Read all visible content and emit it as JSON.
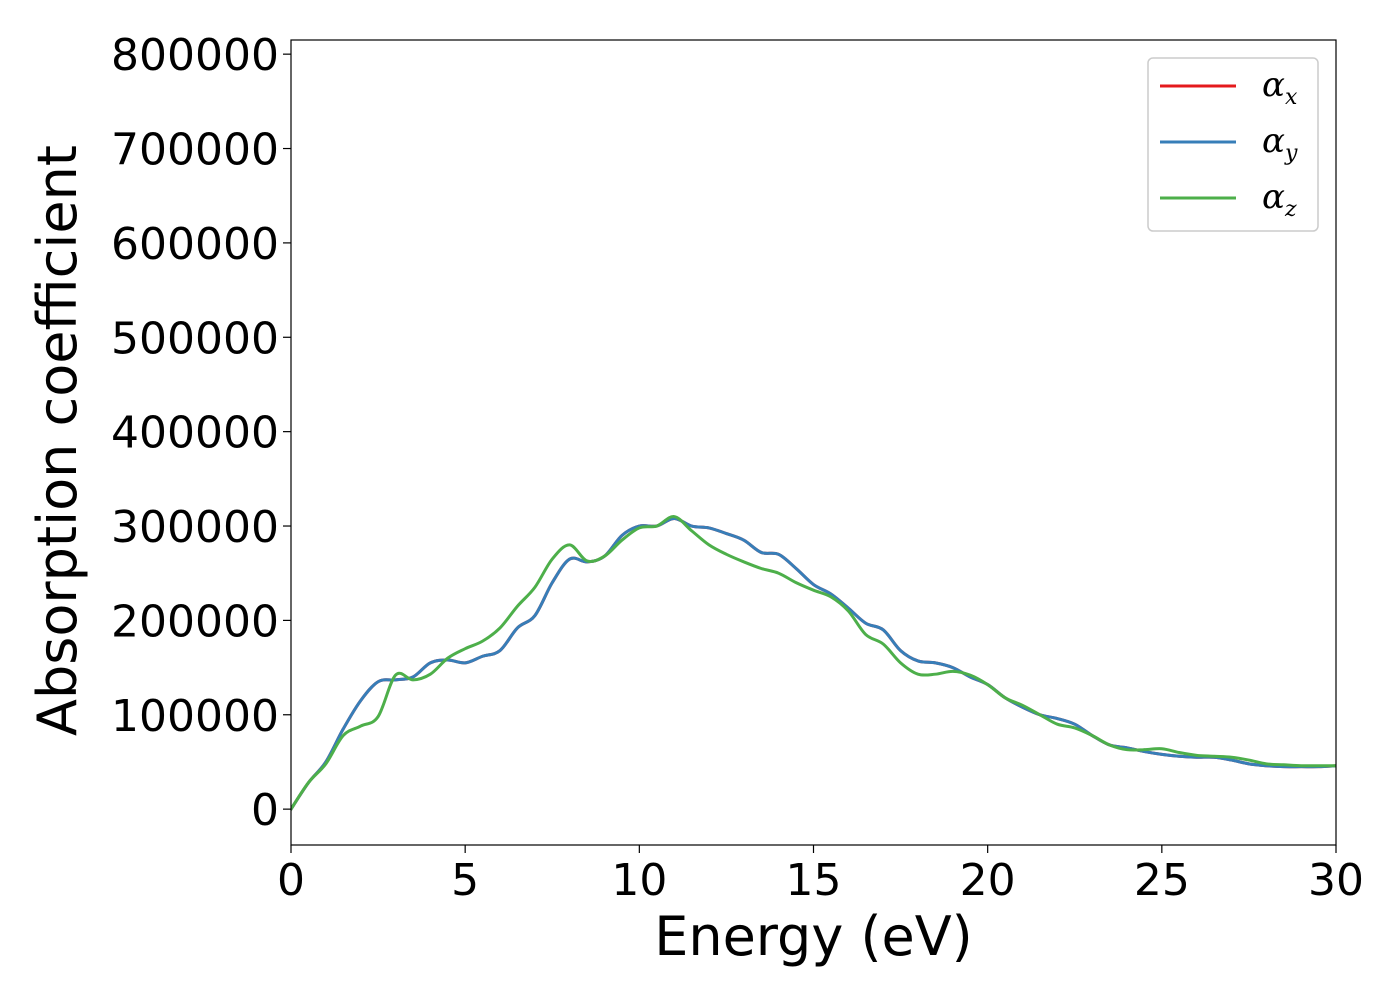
{
  "chart_data": {
    "type": "line",
    "xlabel": "Energy (eV)",
    "ylabel": "Absorption coefficient",
    "xlim": [
      0,
      30
    ],
    "ylim": [
      -38000,
      815000
    ],
    "xticks": [
      0,
      5,
      10,
      15,
      20,
      25,
      30
    ],
    "xtick_labels": [
      "0",
      "5",
      "10",
      "15",
      "20",
      "25",
      "30"
    ],
    "yticks": [
      0,
      100000,
      200000,
      300000,
      400000,
      500000,
      600000,
      700000,
      800000
    ],
    "ytick_labels": [
      "0",
      "100000",
      "200000",
      "300000",
      "400000",
      "500000",
      "600000",
      "700000",
      "800000"
    ],
    "grid": false,
    "legend_position": "top-right",
    "series": [
      {
        "name": "α_x",
        "legend_base": "α",
        "legend_sub": "x",
        "color": "#e41a1c",
        "x": [
          0,
          0.5,
          1,
          1.5,
          2,
          2.5,
          3,
          3.5,
          4,
          4.5,
          5,
          5.5,
          6,
          6.5,
          7,
          7.5,
          8,
          8.5,
          9,
          9.5,
          10,
          10.5,
          11,
          11.5,
          12,
          12.5,
          13,
          13.5,
          14,
          14.5,
          15,
          15.5,
          16,
          16.5,
          17,
          17.5,
          18,
          18.5,
          19,
          19.5,
          20,
          20.5,
          21,
          21.5,
          22,
          22.5,
          23,
          23.5,
          24,
          24.5,
          25,
          25.5,
          26,
          26.5,
          27,
          27.5,
          28,
          28.5,
          29,
          29.5,
          30
        ],
        "y": [
          0,
          28000,
          50000,
          85000,
          115000,
          135000,
          137000,
          140000,
          155000,
          158000,
          155000,
          162000,
          168000,
          192000,
          205000,
          240000,
          265000,
          262000,
          268000,
          290000,
          300000,
          300000,
          308000,
          300000,
          298000,
          292000,
          285000,
          272000,
          270000,
          255000,
          238000,
          228000,
          213000,
          197000,
          190000,
          168000,
          157000,
          155000,
          150000,
          140000,
          132000,
          118000,
          108000,
          100000,
          96000,
          90000,
          78000,
          68000,
          65000,
          61000,
          58000,
          56000,
          55000,
          55000,
          52000,
          48000,
          46000,
          45000,
          45000,
          45000,
          46000
        ]
      },
      {
        "name": "α_y",
        "legend_base": "α",
        "legend_sub": "y",
        "color": "#377eb8",
        "x": [
          0,
          0.5,
          1,
          1.5,
          2,
          2.5,
          3,
          3.5,
          4,
          4.5,
          5,
          5.5,
          6,
          6.5,
          7,
          7.5,
          8,
          8.5,
          9,
          9.5,
          10,
          10.5,
          11,
          11.5,
          12,
          12.5,
          13,
          13.5,
          14,
          14.5,
          15,
          15.5,
          16,
          16.5,
          17,
          17.5,
          18,
          18.5,
          19,
          19.5,
          20,
          20.5,
          21,
          21.5,
          22,
          22.5,
          23,
          23.5,
          24,
          24.5,
          25,
          25.5,
          26,
          26.5,
          27,
          27.5,
          28,
          28.5,
          29,
          29.5,
          30
        ],
        "y": [
          0,
          28000,
          50000,
          85000,
          115000,
          135000,
          137000,
          140000,
          155000,
          158000,
          155000,
          162000,
          168000,
          192000,
          205000,
          240000,
          265000,
          262000,
          268000,
          290000,
          300000,
          300000,
          308000,
          300000,
          298000,
          292000,
          285000,
          272000,
          270000,
          255000,
          238000,
          228000,
          213000,
          197000,
          190000,
          168000,
          157000,
          155000,
          150000,
          140000,
          132000,
          118000,
          108000,
          100000,
          96000,
          90000,
          78000,
          68000,
          65000,
          61000,
          58000,
          56000,
          55000,
          55000,
          52000,
          48000,
          46000,
          45000,
          45000,
          45000,
          46000
        ]
      },
      {
        "name": "α_z",
        "legend_base": "α",
        "legend_sub": "z",
        "color": "#4daf4a",
        "x": [
          0,
          0.5,
          1,
          1.5,
          2,
          2.5,
          3,
          3.5,
          4,
          4.5,
          5,
          5.5,
          6,
          6.5,
          7,
          7.5,
          8,
          8.5,
          9,
          9.5,
          10,
          10.5,
          11,
          11.5,
          12,
          12.5,
          13,
          13.5,
          14,
          14.5,
          15,
          15.5,
          16,
          16.5,
          17,
          17.5,
          18,
          18.5,
          19,
          19.5,
          20,
          20.5,
          21,
          21.5,
          22,
          22.5,
          23,
          23.5,
          24,
          24.5,
          25,
          25.5,
          26,
          26.5,
          27,
          27.5,
          28,
          28.5,
          29,
          29.5,
          30
        ],
        "y": [
          0,
          28000,
          48000,
          78000,
          88000,
          98000,
          142000,
          137000,
          143000,
          160000,
          170000,
          178000,
          192000,
          215000,
          235000,
          265000,
          280000,
          263000,
          268000,
          285000,
          298000,
          300000,
          310000,
          295000,
          280000,
          270000,
          262000,
          255000,
          250000,
          240000,
          232000,
          225000,
          210000,
          185000,
          175000,
          155000,
          143000,
          143000,
          146000,
          142000,
          132000,
          118000,
          110000,
          100000,
          90000,
          86000,
          78000,
          68000,
          63000,
          63000,
          64000,
          60000,
          57000,
          56000,
          55000,
          52000,
          48000,
          47000,
          46000,
          46000,
          46000
        ]
      }
    ]
  }
}
